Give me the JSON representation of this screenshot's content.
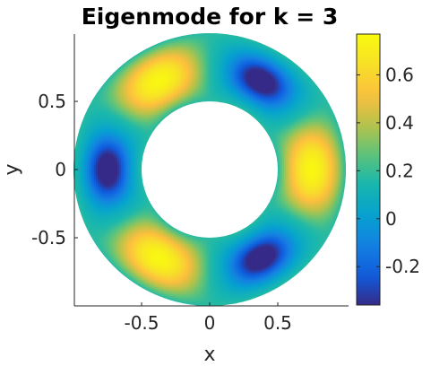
{
  "chart_data": {
    "type": "heatmap",
    "title": "Eigenmode for k = 3",
    "xlabel": "x",
    "ylabel": "y",
    "xlim": [
      -1,
      1
    ],
    "ylim": [
      -1,
      1
    ],
    "x_ticks": [
      -0.5,
      0,
      0.5
    ],
    "x_tick_labels": [
      "-0.5",
      "0",
      "0.5"
    ],
    "y_ticks": [
      0.5,
      0,
      -0.5
    ],
    "y_tick_labels": [
      "0.5",
      "0",
      "-0.5"
    ],
    "domain": {
      "shape": "annulus",
      "inner_radius": 0.5,
      "outer_radius": 1.0,
      "center": [
        0,
        0
      ]
    },
    "mode": {
      "angular_order": 3,
      "phase_max_deg": 0
    },
    "hotspots": [
      {
        "x": 0.68,
        "y": 0.0,
        "value": 0.73
      },
      {
        "x": -0.4,
        "y": 0.78,
        "value": 0.73
      },
      {
        "x": -0.4,
        "y": -0.78,
        "value": 0.73
      }
    ],
    "colorbar": {
      "colormap": "parula",
      "range": [
        -0.36,
        0.77
      ],
      "ticks": [
        0.6,
        0.4,
        0.2,
        0,
        -0.2
      ],
      "tick_labels": [
        "0.6",
        "0.4",
        "0.2",
        "0",
        "-0.2"
      ]
    }
  }
}
